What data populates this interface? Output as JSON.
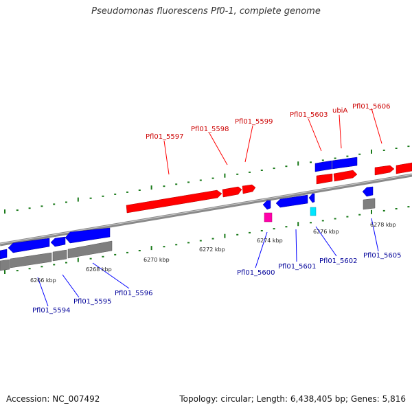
{
  "title": "Pseudomonas fluorescens Pf0-1, complete genome",
  "footer": {
    "accession": "Accession: NC_007492",
    "genome_info": "Topology: circular; Length: 6,438,405 bp; Genes: 5,816"
  },
  "colors": {
    "forward_strand": "#ff0000",
    "reverse_strand": "#0000ff",
    "backbone": "#808080",
    "tick": "#1a7a1a",
    "rna_magenta": "#ff00aa",
    "rna_cyan": "#00e5ff"
  },
  "position_ticks": [
    "6266 kbp",
    "6268 kbp",
    "6270 kbp",
    "6272 kbp",
    "6274 kbp",
    "6276 kbp",
    "6278 kbp"
  ],
  "gene_labels_forward": [
    "Pfl01_5597",
    "Pfl01_5598",
    "Pfl01_5599",
    "Pfl01_5603",
    "ubiA",
    "Pfl01_5606"
  ],
  "gene_labels_reverse": [
    "Pfl01_5594",
    "Pfl01_5595",
    "Pfl01_5596",
    "Pfl01_5600",
    "Pfl01_5601",
    "Pfl01_5602",
    "Pfl01_5605"
  ]
}
